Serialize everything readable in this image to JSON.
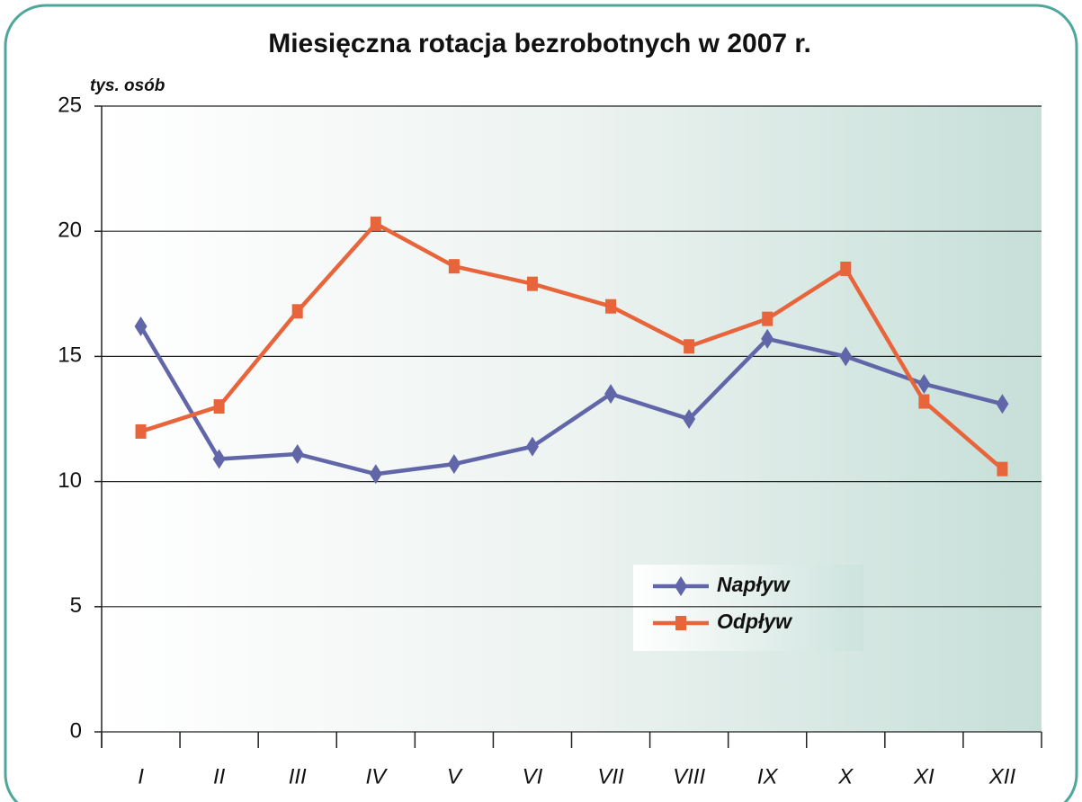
{
  "chart_data": {
    "type": "line",
    "title": "Miesięczna rotacja bezrobotnych w 2007 r.",
    "y_label": "tys. osób",
    "categories": [
      "I",
      "II",
      "III",
      "IV",
      "V",
      "VI",
      "VII",
      "VIII",
      "IX",
      "X",
      "XI",
      "XII"
    ],
    "series": [
      {
        "name": "Napływ",
        "color": "#6166a9",
        "marker": "diamond",
        "values": [
          16.2,
          10.9,
          11.1,
          10.3,
          10.7,
          11.4,
          13.5,
          12.5,
          15.7,
          15.0,
          13.9,
          13.1
        ]
      },
      {
        "name": "Odpływ",
        "color": "#e8643a",
        "marker": "square",
        "values": [
          12.0,
          13.0,
          16.8,
          20.3,
          18.6,
          17.9,
          17.0,
          15.4,
          16.5,
          18.5,
          13.2,
          10.5
        ]
      }
    ],
    "ylim": [
      0,
      25
    ],
    "yticks": [
      0,
      5,
      10,
      15,
      20,
      25
    ],
    "grid": true
  }
}
